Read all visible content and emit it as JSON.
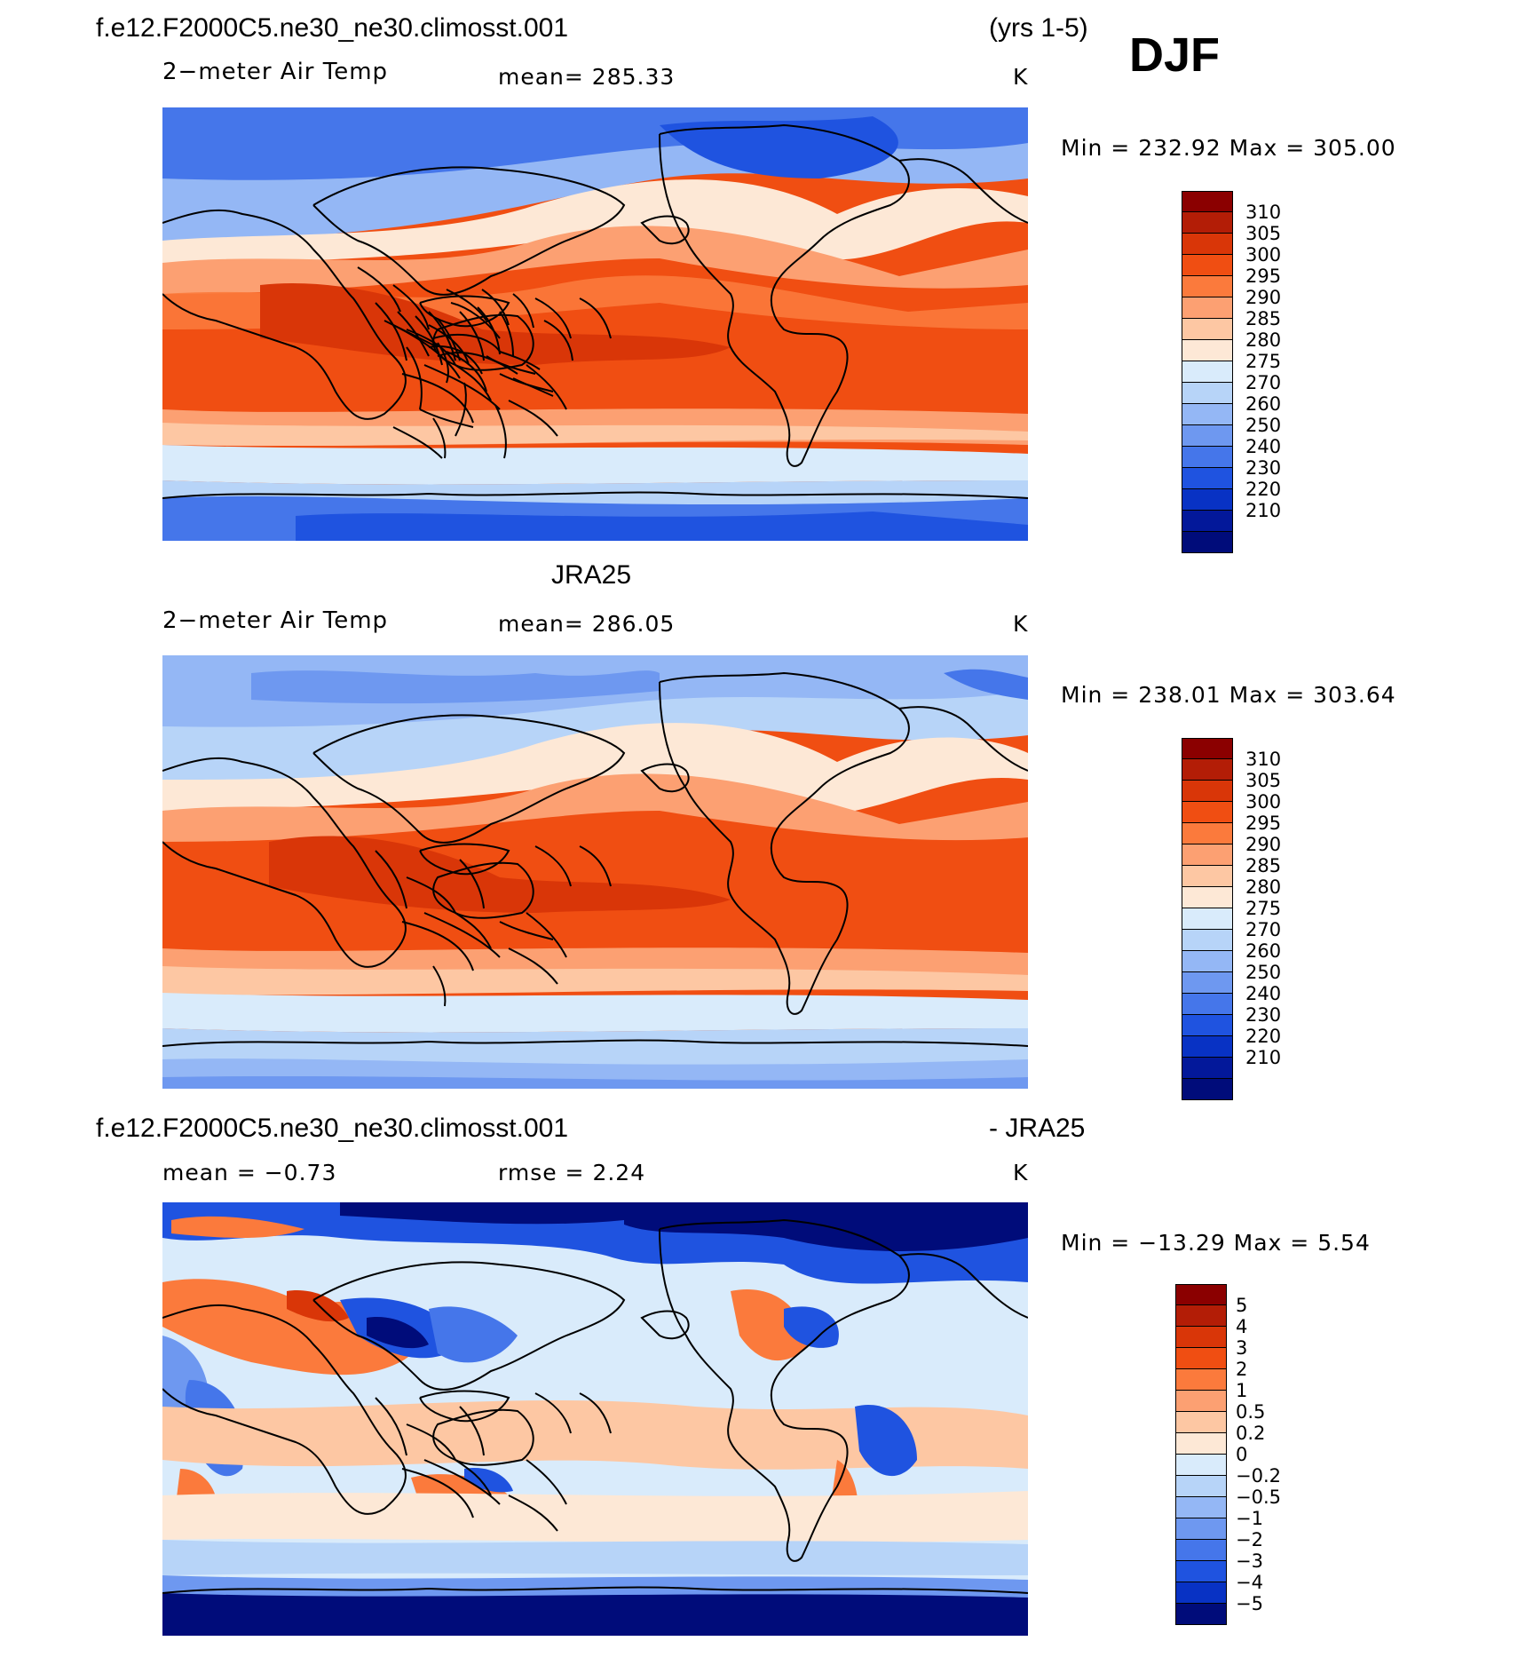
{
  "season": "DJF",
  "header": {
    "case_name": "f.e12.F2000C5.ne30_ne30.climosst.001",
    "years": "(yrs 1-5)"
  },
  "panels": [
    {
      "id": "model",
      "variable": "2−meter Air Temp",
      "stat_text": "mean=  285.33",
      "units": "K",
      "minmax": "Min  =  232.92  Max  =  305.00"
    },
    {
      "id": "obs",
      "title": "JRA25",
      "variable": "2−meter Air Temp",
      "stat_text": "mean=  286.05",
      "units": "K",
      "minmax": "Min  =  238.01  Max  =  303.64"
    },
    {
      "id": "diff",
      "title_left": "f.e12.F2000C5.ne30_ne30.climosst.001",
      "title_right": "- JRA25",
      "mean_text": "mean  =    −0.73",
      "rmse_text": "rmse  =     2.24",
      "units": "K",
      "minmax": "Min  =  −13.29  Max  =     5.54"
    }
  ],
  "colorbars": {
    "temperature": {
      "colors": [
        "#8b0000",
        "#b31d06",
        "#d93608",
        "#f04e12",
        "#fb7a3c",
        "#fca072",
        "#fdc7a3",
        "#fde8d6",
        "#d9ebfb",
        "#b7d4f8",
        "#94b7f5",
        "#6e98f0",
        "#4576ea",
        "#1f53e0",
        "#0832c4",
        "#03189a",
        "#000c7a"
      ],
      "labels": [
        "310",
        "305",
        "300",
        "295",
        "290",
        "285",
        "280",
        "275",
        "270",
        "260",
        "250",
        "240",
        "230",
        "220",
        "210"
      ]
    },
    "difference": {
      "colors": [
        "#8b0000",
        "#b31d06",
        "#d93608",
        "#f04e12",
        "#fb7a3c",
        "#fca072",
        "#fdc7a3",
        "#fde8d6",
        "#d9ebfb",
        "#b7d4f8",
        "#94b7f5",
        "#6e98f0",
        "#4576ea",
        "#1f53e0",
        "#0832c4",
        "#000c7a"
      ],
      "labels": [
        "5",
        "4",
        "3",
        "2",
        "1",
        "0.5",
        "0.2",
        "0",
        "−0.2",
        "−0.5",
        "−1",
        "−2",
        "−3",
        "−4",
        "−5"
      ]
    }
  }
}
